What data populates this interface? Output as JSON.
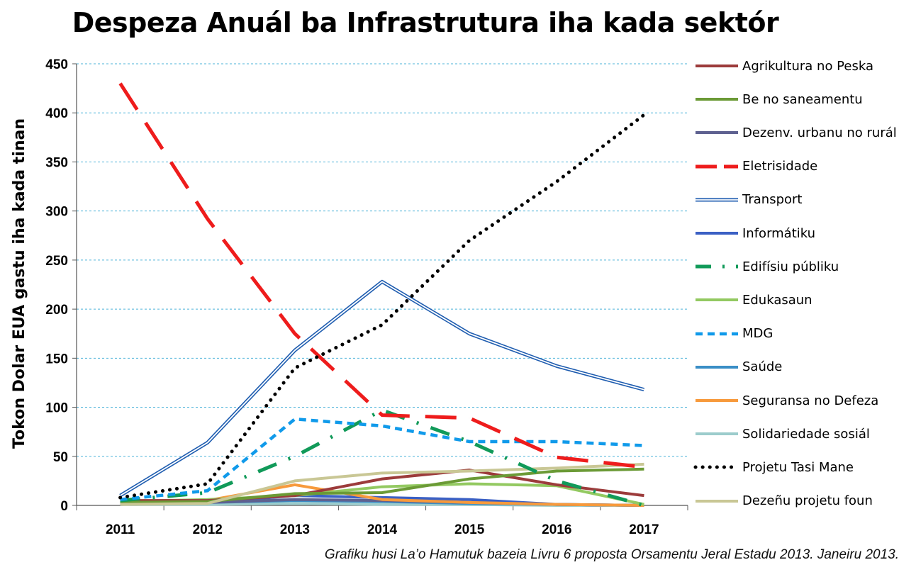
{
  "chart_data": {
    "type": "line",
    "title": "Despeza Anuál ba Infrastrutura iha kada sektór",
    "xlabel": "",
    "ylabel": "Tokon Dolar EUA gastu iha kada tinan",
    "source_note": "Grafiku husi La’o Hamutuk bazeia Livru 6 proposta Orsamentu Jeral Estadu 2013.  Janeiru 2013.",
    "ylim": [
      0,
      450
    ],
    "yticks": [
      0,
      50,
      100,
      150,
      200,
      250,
      300,
      350,
      400,
      450
    ],
    "grid": "horizontal dashed",
    "legend_position": "right",
    "categories": [
      "2011",
      "2012",
      "2013",
      "2014",
      "2015",
      "2016",
      "2017"
    ],
    "series": [
      {
        "name": "Agrikultura no Peska",
        "color": "#9c3b3b",
        "style": "solid",
        "values": [
          5,
          5,
          10,
          27,
          36,
          21,
          10
        ]
      },
      {
        "name": "Be no saneamentu",
        "color": "#6b9a36",
        "style": "solid",
        "values": [
          3,
          4,
          12,
          13,
          27,
          35,
          37
        ]
      },
      {
        "name": "Dezenv. urbanu no rurál",
        "color": "#5e6190",
        "style": "solid",
        "values": [
          2,
          3,
          6,
          5,
          3,
          1,
          0
        ]
      },
      {
        "name": "Eletrisidade",
        "color": "#ee1c1c",
        "style": "longdash",
        "values": [
          430,
          292,
          175,
          92,
          89,
          49,
          39
        ]
      },
      {
        "name": "Transport",
        "color": "#1f5db0",
        "style": "double",
        "values": [
          10,
          64,
          158,
          228,
          175,
          142,
          118
        ]
      },
      {
        "name": "Informátiku",
        "color": "#3b60c4",
        "style": "solid",
        "values": [
          1,
          3,
          10,
          8,
          6,
          1,
          0
        ]
      },
      {
        "name": "Edifísiu públiku",
        "color": "#119a59",
        "style": "dashdot",
        "values": [
          5,
          13,
          50,
          97,
          65,
          25,
          0
        ]
      },
      {
        "name": "Edukasaun",
        "color": "#93c961",
        "style": "solid",
        "values": [
          4,
          6,
          10,
          19,
          22,
          20,
          1
        ]
      },
      {
        "name": "MDG",
        "color": "#109aea",
        "style": "dash",
        "values": [
          6,
          15,
          88,
          81,
          65,
          65,
          61
        ]
      },
      {
        "name": "Saúde",
        "color": "#3a8ec6",
        "style": "solid",
        "values": [
          2,
          3,
          5,
          4,
          2,
          1,
          0
        ]
      },
      {
        "name": "Seguransa no Defeza",
        "color": "#f79a3c",
        "style": "solid",
        "values": [
          3,
          5,
          21,
          6,
          3,
          1,
          0
        ]
      },
      {
        "name": "Solidariedade sosiál",
        "color": "#9ccccc",
        "style": "solid",
        "values": [
          1,
          1,
          2,
          1,
          1,
          0,
          0
        ]
      },
      {
        "name": "Projetu Tasi Mane",
        "color": "#000000",
        "style": "dotted",
        "values": [
          8,
          22,
          140,
          184,
          270,
          330,
          398
        ]
      },
      {
        "name": "Dezeñu projetu foun",
        "color": "#c9c795",
        "style": "solid",
        "values": [
          1,
          2,
          25,
          33,
          35,
          38,
          42
        ]
      }
    ]
  }
}
